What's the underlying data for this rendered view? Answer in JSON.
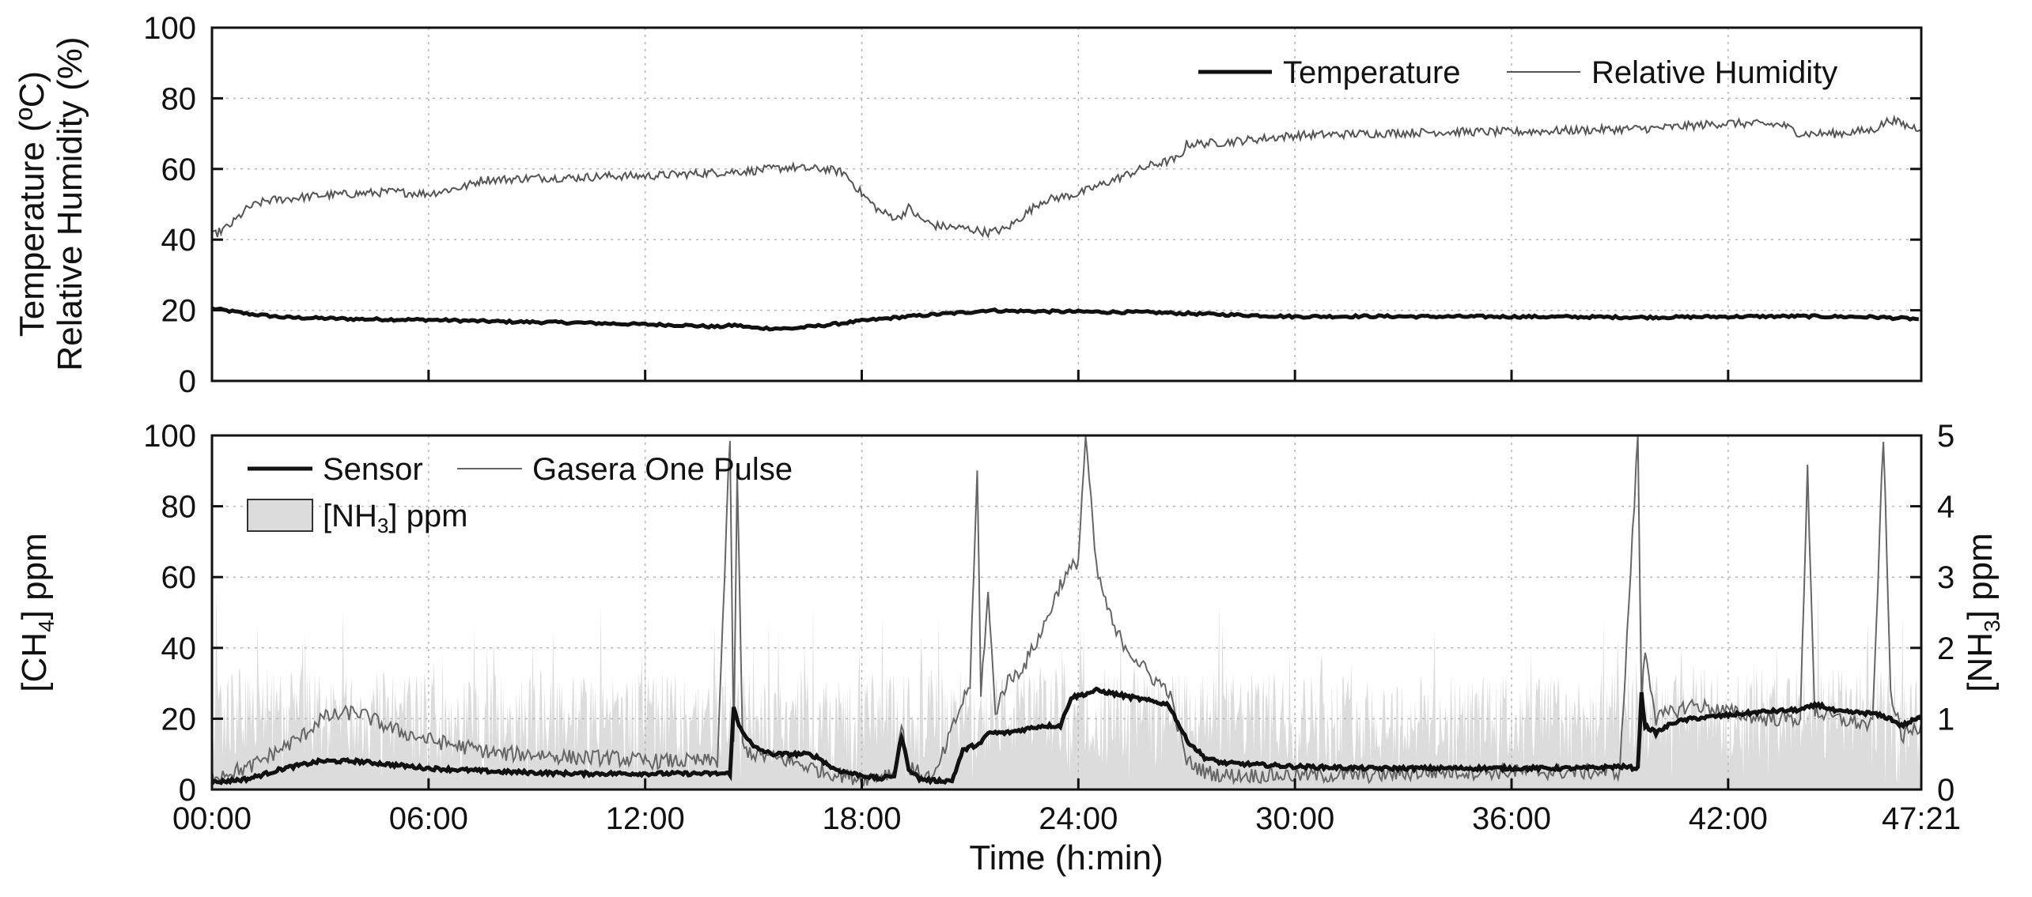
{
  "figure": {
    "top_panel": {
      "ylabel_line1": "Temperature (ºC)",
      "ylabel_line2": "Relative Humidity (%)",
      "yticks": [
        "0",
        "20",
        "40",
        "60",
        "80",
        "100"
      ],
      "legend": {
        "temperature": "Temperature",
        "humidity": "Relative Humidity"
      }
    },
    "bottom_panel": {
      "ylabel_left_main": "[CH",
      "ylabel_left_sub": "4",
      "ylabel_left_tail": "] ppm",
      "ylabel_right_main": "[NH",
      "ylabel_right_sub": "3",
      "ylabel_right_tail": "] ppm",
      "yticks_left": [
        "0",
        "20",
        "40",
        "60",
        "80",
        "100"
      ],
      "yticks_right": [
        "0",
        "1",
        "2",
        "3",
        "4",
        "5"
      ],
      "legend": {
        "sensor": "Sensor",
        "gasera": "Gasera One Pulse",
        "nh3_main": "[NH",
        "nh3_sub": "3",
        "nh3_tail": "] ppm"
      }
    },
    "xlabel": "Time (h:min)",
    "xticks": [
      "00:00",
      "06:00",
      "12:00",
      "18:00",
      "24:00",
      "30:00",
      "36:00",
      "42:00",
      "47:21"
    ]
  },
  "chart_data": [
    {
      "type": "line",
      "title": "",
      "xlabel": "Time (h:min)",
      "ylabel": "Temperature (ºC) / Relative Humidity (%)",
      "xlim": [
        0,
        47.35
      ],
      "ylim": [
        0,
        100
      ],
      "grid": true,
      "legend_position": "top-right",
      "series": [
        {
          "name": "Temperature",
          "style": "thick-black",
          "x": [
            0,
            1,
            2,
            4,
            6,
            8,
            10,
            12,
            13,
            14,
            14.5,
            15,
            16,
            17,
            18,
            19,
            20,
            21,
            21.5,
            22,
            24,
            26,
            28,
            30,
            32,
            34,
            36,
            38,
            40,
            42,
            44,
            46,
            47.35
          ],
          "y": [
            20.5,
            19,
            18,
            17.5,
            17.3,
            16.8,
            16.5,
            16,
            15.8,
            15.3,
            15.8,
            15,
            14.8,
            15.8,
            17,
            18,
            18.8,
            19.5,
            20,
            19.8,
            19.6,
            19.4,
            18.8,
            18.2,
            18.3,
            18.2,
            18.2,
            18.1,
            18.0,
            18.2,
            18.3,
            18.1,
            17.5
          ]
        },
        {
          "name": "Relative Humidity",
          "style": "thin-gray",
          "x": [
            0,
            0.5,
            1,
            1.5,
            2,
            3,
            4,
            5,
            6,
            7,
            7.5,
            8,
            9,
            10,
            11,
            12,
            13,
            14,
            15,
            16,
            16.5,
            17,
            17.5,
            18,
            18.5,
            19,
            19.3,
            19.6,
            20,
            21,
            21.5,
            22,
            22.5,
            23,
            24,
            25,
            26,
            26.8,
            27,
            28,
            29,
            30,
            32,
            34,
            36,
            38,
            40,
            42,
            43.5,
            44,
            45,
            46,
            46.5,
            47,
            47.35
          ],
          "y": [
            41,
            44,
            49,
            51,
            51.5,
            52.5,
            53,
            53.5,
            53,
            55,
            57,
            57,
            57.5,
            57.5,
            58,
            58,
            58.5,
            59,
            59.5,
            60.5,
            60,
            60,
            59,
            53,
            48,
            46,
            49,
            46,
            44,
            43,
            42,
            43,
            47,
            51,
            53,
            57,
            61,
            63,
            67,
            67.5,
            68.5,
            69.5,
            70,
            70.5,
            70.5,
            71,
            71.5,
            73,
            72.5,
            70,
            70,
            71,
            74,
            72,
            71.5
          ]
        }
      ]
    },
    {
      "type": "line",
      "title": "",
      "xlabel": "Time (h:min)",
      "ylabel": "[CH4] ppm",
      "ylabel_right": "[NH3] ppm",
      "xlim": [
        0,
        47.35
      ],
      "ylim": [
        0,
        100
      ],
      "ylim_right": [
        0,
        5
      ],
      "grid": true,
      "legend_position": "top-left",
      "series": [
        {
          "name": "Sensor",
          "style": "thick-black",
          "x": [
            0,
            1,
            2,
            3,
            4,
            6,
            8,
            10,
            12,
            13,
            14,
            14.35,
            14.45,
            14.6,
            15,
            15.5,
            16,
            16.5,
            16.8,
            17.2,
            17.5,
            18.5,
            18.9,
            19.1,
            19.3,
            19.6,
            20,
            20.5,
            20.8,
            21,
            21.3,
            21.5,
            22,
            22.5,
            23,
            23.5,
            23.8,
            24.2,
            24.5,
            25,
            25.5,
            26,
            26.5,
            27,
            27.5,
            28,
            30,
            32,
            34,
            36,
            38,
            39,
            39.5,
            39.6,
            39.7,
            40,
            40.5,
            41,
            42,
            43,
            44,
            44.5,
            45,
            46,
            46.5,
            46.8,
            47.35
          ],
          "y": [
            2,
            3,
            6,
            8,
            8,
            6,
            5,
            4.5,
            4.5,
            4.5,
            4.5,
            4.5,
            23,
            18,
            12,
            10,
            10,
            10,
            9,
            6,
            5,
            3,
            4,
            15,
            6,
            3,
            2.5,
            2.5,
            11,
            12,
            13,
            16,
            16,
            17,
            18,
            18,
            26,
            27,
            28,
            27,
            26,
            25,
            24,
            14,
            9,
            7.5,
            6.5,
            6,
            6,
            6,
            6,
            6.5,
            6,
            27,
            18,
            16,
            19,
            20,
            21,
            22,
            22.5,
            24,
            22,
            21.5,
            20,
            18,
            20.5
          ]
        },
        {
          "name": "Gasera One Pulse",
          "style": "thin-gray",
          "x": [
            0,
            1,
            2,
            2.5,
            3,
            4,
            5,
            6,
            7,
            8,
            9,
            10,
            11,
            12,
            13,
            14,
            14.35,
            14.45,
            14.55,
            14.7,
            15,
            16,
            17,
            18,
            18.9,
            19.1,
            19.3,
            20,
            20.8,
            21,
            21.2,
            21.3,
            21.5,
            21.7,
            22,
            22.5,
            23,
            23.5,
            24,
            24.2,
            24.5,
            24.7,
            25,
            25.5,
            26,
            26.5,
            27,
            27.5,
            28,
            30,
            32,
            34,
            36,
            38,
            39,
            39.5,
            39.6,
            39.7,
            40,
            40.5,
            41,
            42,
            43,
            44,
            44.2,
            44.4,
            45,
            46,
            46.3,
            46.5,
            46.8,
            47.35
          ],
          "y": [
            4,
            6,
            12,
            15,
            20,
            22,
            17,
            14,
            12,
            10,
            10,
            9,
            9,
            8,
            8,
            8,
            100,
            12,
            90,
            12,
            10,
            8,
            5,
            3,
            5,
            18,
            6,
            3,
            25,
            30,
            90,
            28,
            55,
            22,
            30,
            35,
            45,
            58,
            65,
            100,
            62,
            55,
            45,
            38,
            32,
            28,
            8,
            5,
            4,
            4,
            4,
            5,
            5,
            5,
            5,
            100,
            25,
            40,
            20,
            22,
            24,
            22,
            20,
            20,
            90,
            22,
            20,
            18,
            100,
            28,
            15,
            18
          ]
        },
        {
          "name": "[NH3] ppm",
          "style": "gray-filled-area",
          "axis": "right",
          "x": [
            0,
            4,
            8,
            12,
            16,
            20,
            24,
            28,
            32,
            36,
            40,
            44,
            47.35
          ],
          "y": [
            1.1,
            1.05,
            1.0,
            1.05,
            1.0,
            1.05,
            1.1,
            1.05,
            1.0,
            1.0,
            1.05,
            1.1,
            1.05
          ],
          "y_fluctuation_range": [
            0.05,
            2.9
          ]
        }
      ]
    }
  ]
}
